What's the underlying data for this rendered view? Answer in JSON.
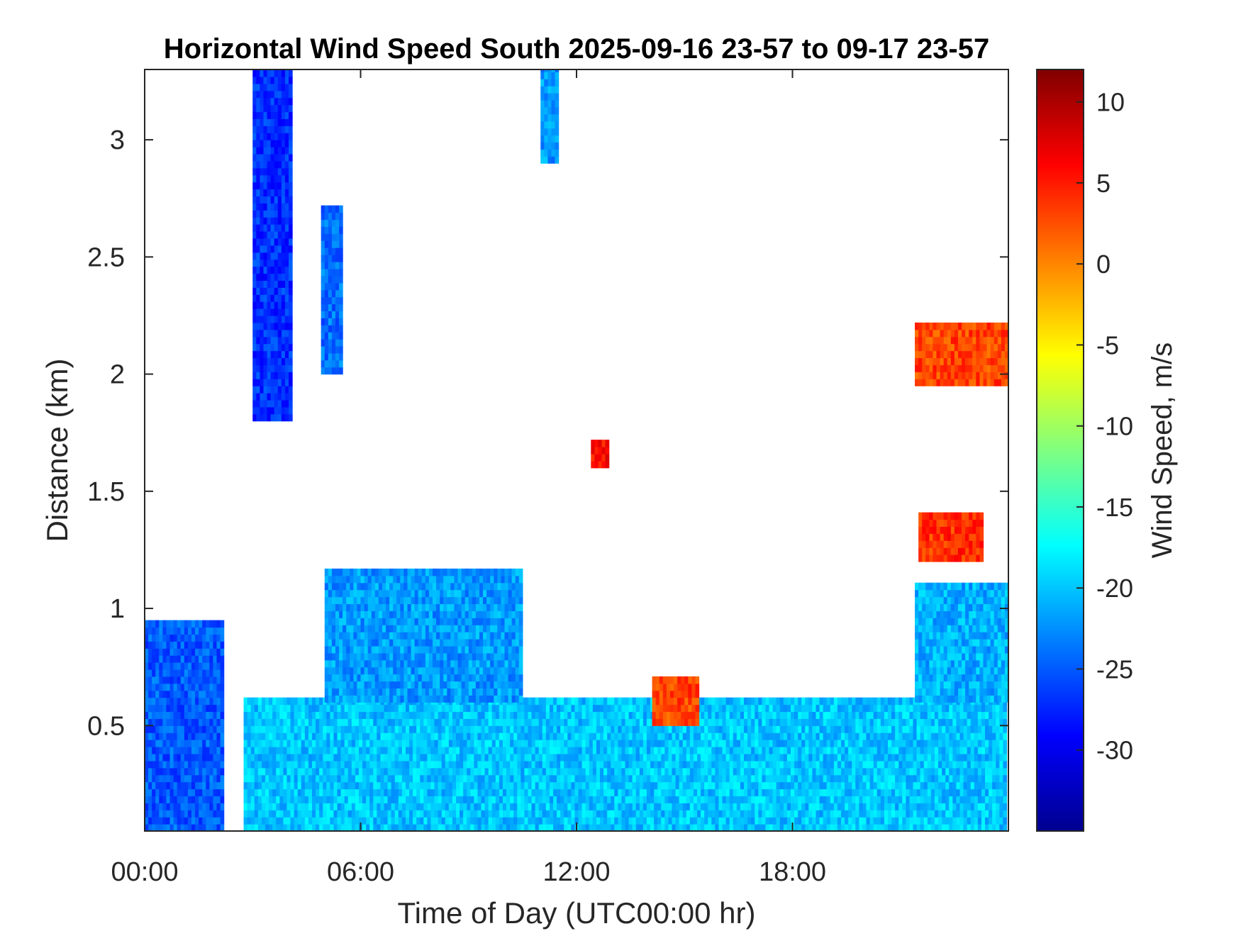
{
  "chart_data": {
    "type": "heatmap",
    "title": "Horizontal Wind Speed South 2025-09-16 23-57 to 09-17 23-57",
    "xlabel": "Time of Day (UTC00:00 hr)",
    "ylabel": "Distance (km)",
    "xlim": [
      0,
      24
    ],
    "ylim": [
      0.05,
      3.3
    ],
    "xticks": [
      {
        "value": 0,
        "label": "00:00"
      },
      {
        "value": 6,
        "label": "06:00"
      },
      {
        "value": 12,
        "label": "12:00"
      },
      {
        "value": 18,
        "label": "18:00"
      }
    ],
    "yticks": [
      {
        "value": 0.5,
        "label": "0.5"
      },
      {
        "value": 1,
        "label": "1"
      },
      {
        "value": 1.5,
        "label": "1.5"
      },
      {
        "value": 2,
        "label": "2"
      },
      {
        "value": 2.5,
        "label": "2.5"
      },
      {
        "value": 3,
        "label": "3"
      }
    ],
    "colorbar": {
      "label": "Wind Speed, m/s",
      "range": [
        -35,
        12
      ],
      "colormap": "jet",
      "ticks": [
        {
          "value": 10,
          "label": "10"
        },
        {
          "value": 5,
          "label": "5"
        },
        {
          "value": 0,
          "label": "0"
        },
        {
          "value": -5,
          "label": "-5"
        },
        {
          "value": -10,
          "label": "-10"
        },
        {
          "value": -15,
          "label": "-15"
        },
        {
          "value": -20,
          "label": "-20"
        },
        {
          "value": -25,
          "label": "-25"
        },
        {
          "value": -30,
          "label": "-30"
        }
      ]
    },
    "grid": false,
    "no_data_color": "#ffffff",
    "data_regions": [
      {
        "t": [
          2.75,
          23.95
        ],
        "z": [
          0.05,
          0.6
        ],
        "speed": -20
      },
      {
        "t": [
          0.0,
          2.2
        ],
        "z": [
          0.05,
          0.95
        ],
        "speed": -25
      },
      {
        "t": [
          5.0,
          10.5
        ],
        "z": [
          0.6,
          1.15
        ],
        "speed": -22
      },
      {
        "t": [
          21.4,
          23.95
        ],
        "z": [
          0.6,
          1.1
        ],
        "speed": -21
      },
      {
        "t": [
          3.0,
          4.1
        ],
        "z": [
          1.8,
          3.3
        ],
        "speed": -27
      },
      {
        "t": [
          4.9,
          5.5
        ],
        "z": [
          2.0,
          2.7
        ],
        "speed": -24
      },
      {
        "t": [
          14.1,
          15.4
        ],
        "z": [
          0.5,
          0.7
        ],
        "speed": 3
      },
      {
        "t": [
          21.4,
          23.95
        ],
        "z": [
          1.95,
          2.2
        ],
        "speed": 3
      },
      {
        "t": [
          21.5,
          23.3
        ],
        "z": [
          1.2,
          1.4
        ],
        "speed": 4
      },
      {
        "t": [
          12.4,
          12.9
        ],
        "z": [
          1.6,
          1.72
        ],
        "speed": 6
      },
      {
        "t": [
          11.0,
          11.5
        ],
        "z": [
          2.9,
          3.3
        ],
        "speed": -22
      }
    ]
  }
}
